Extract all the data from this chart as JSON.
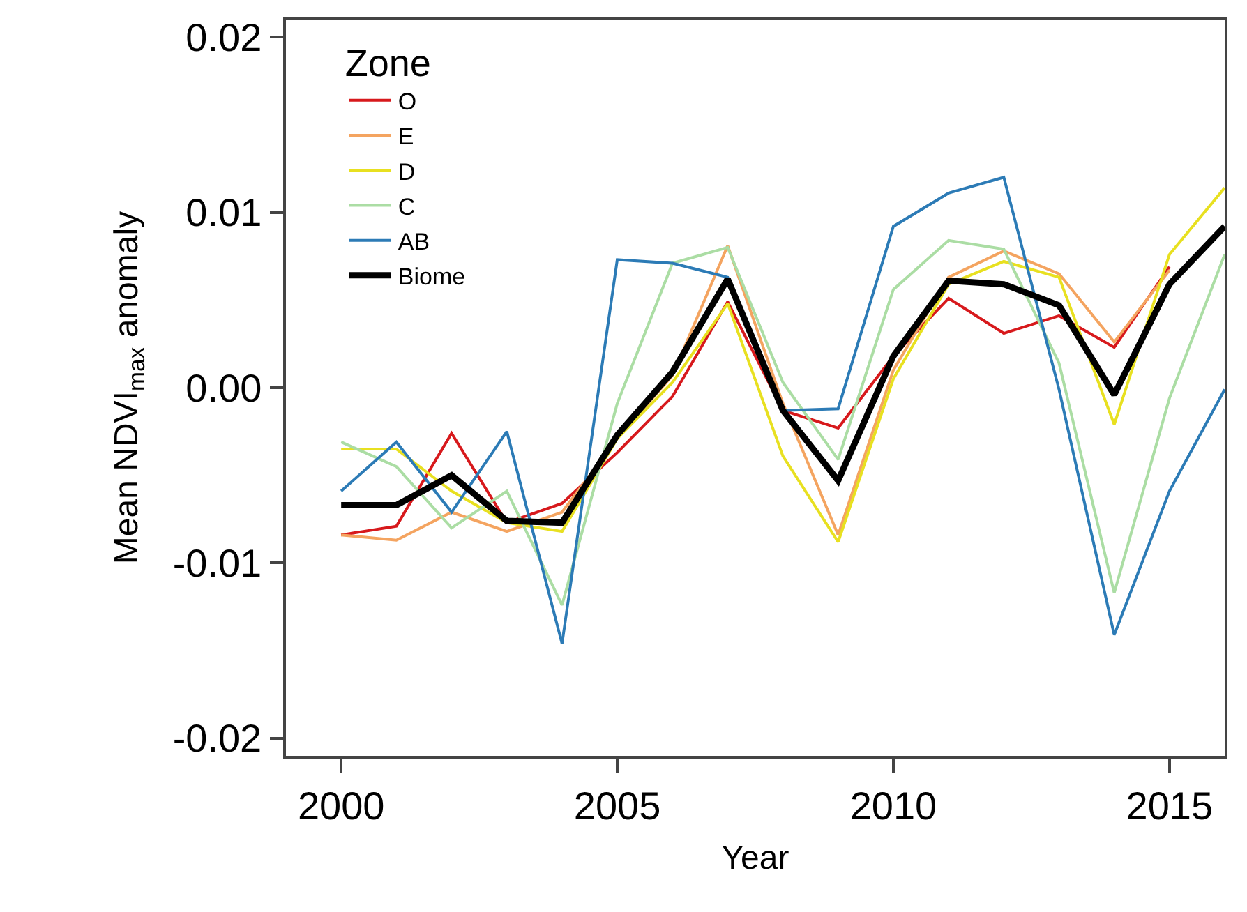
{
  "chart_data": {
    "type": "line",
    "xlabel": "Year",
    "ylabel": "Mean NDVI$_{max}$ anomaly",
    "legend_title": "Zone",
    "legend": "top left",
    "grid": false,
    "marker": "none",
    "line_style": "solid",
    "x": [
      2000,
      2001,
      2002,
      2003,
      2004,
      2005,
      2006,
      2007,
      2008,
      2009,
      2010,
      2011,
      2012,
      2013,
      2014,
      2015,
      2016
    ],
    "xlim": [
      1999,
      2016
    ],
    "xticks": [
      2000,
      2005,
      2010,
      2015
    ],
    "ylim": [
      -0.021,
      0.021
    ],
    "yticks": [
      {
        "value": -0.02,
        "label": "-0.02"
      },
      {
        "value": -0.01,
        "label": "-0.01"
      },
      {
        "value": 0,
        "label": "0.00"
      },
      {
        "value": 0.01,
        "label": "0.01"
      },
      {
        "value": 0.02,
        "label": "0.02"
      }
    ],
    "series": [
      {
        "name": "O",
        "color": "#d7191c",
        "values": [
          -0.0084,
          -0.0079,
          -0.0026,
          -0.0077,
          -0.0066,
          -0.0037,
          -0.0005,
          0.0049,
          -0.0013,
          -0.0023,
          0.0018,
          0.0051,
          0.0031,
          0.0041,
          0.0023,
          0.0069,
          null
        ]
      },
      {
        "name": "E",
        "color": "#f4a460",
        "values": [
          -0.0084,
          -0.0087,
          -0.0071,
          -0.0082,
          -0.0071,
          -0.0029,
          0.0007,
          0.0081,
          -0.0009,
          -0.0084,
          0.001,
          0.0063,
          0.0078,
          0.0065,
          0.0026,
          0.0067,
          null
        ]
      },
      {
        "name": "D",
        "color": "#e8e020",
        "values": [
          -0.0035,
          -0.0035,
          -0.0059,
          -0.0077,
          -0.0082,
          -0.0029,
          0.0003,
          0.0048,
          -0.0039,
          -0.0088,
          0.0005,
          0.0059,
          0.0072,
          0.0063,
          -0.0021,
          0.0076,
          0.0114
        ]
      },
      {
        "name": "C",
        "color": "#abdda4",
        "values": [
          -0.0031,
          -0.0045,
          -0.008,
          -0.0059,
          -0.0124,
          -0.0009,
          0.0071,
          0.008,
          0.0003,
          -0.0041,
          0.0056,
          0.0084,
          0.0079,
          0.0014,
          -0.0117,
          -0.0006,
          0.0076
        ]
      },
      {
        "name": "AB",
        "color": "#2c7bb6",
        "values": [
          -0.0059,
          -0.0031,
          -0.0071,
          -0.0025,
          -0.0146,
          0.0073,
          0.0071,
          0.0063,
          -0.0013,
          -0.0012,
          0.0092,
          0.0111,
          0.012,
          -0.0001,
          -0.0141,
          -0.0059,
          -0.0001
        ]
      },
      {
        "name": "Biome",
        "color": "#000000",
        "values": [
          -0.0067,
          -0.0067,
          -0.005,
          -0.0076,
          -0.0077,
          -0.0027,
          0.0009,
          0.0062,
          -0.0013,
          -0.0053,
          0.0018,
          0.0061,
          0.0059,
          0.0047,
          -0.0004,
          0.0059,
          0.0092
        ]
      }
    ]
  }
}
